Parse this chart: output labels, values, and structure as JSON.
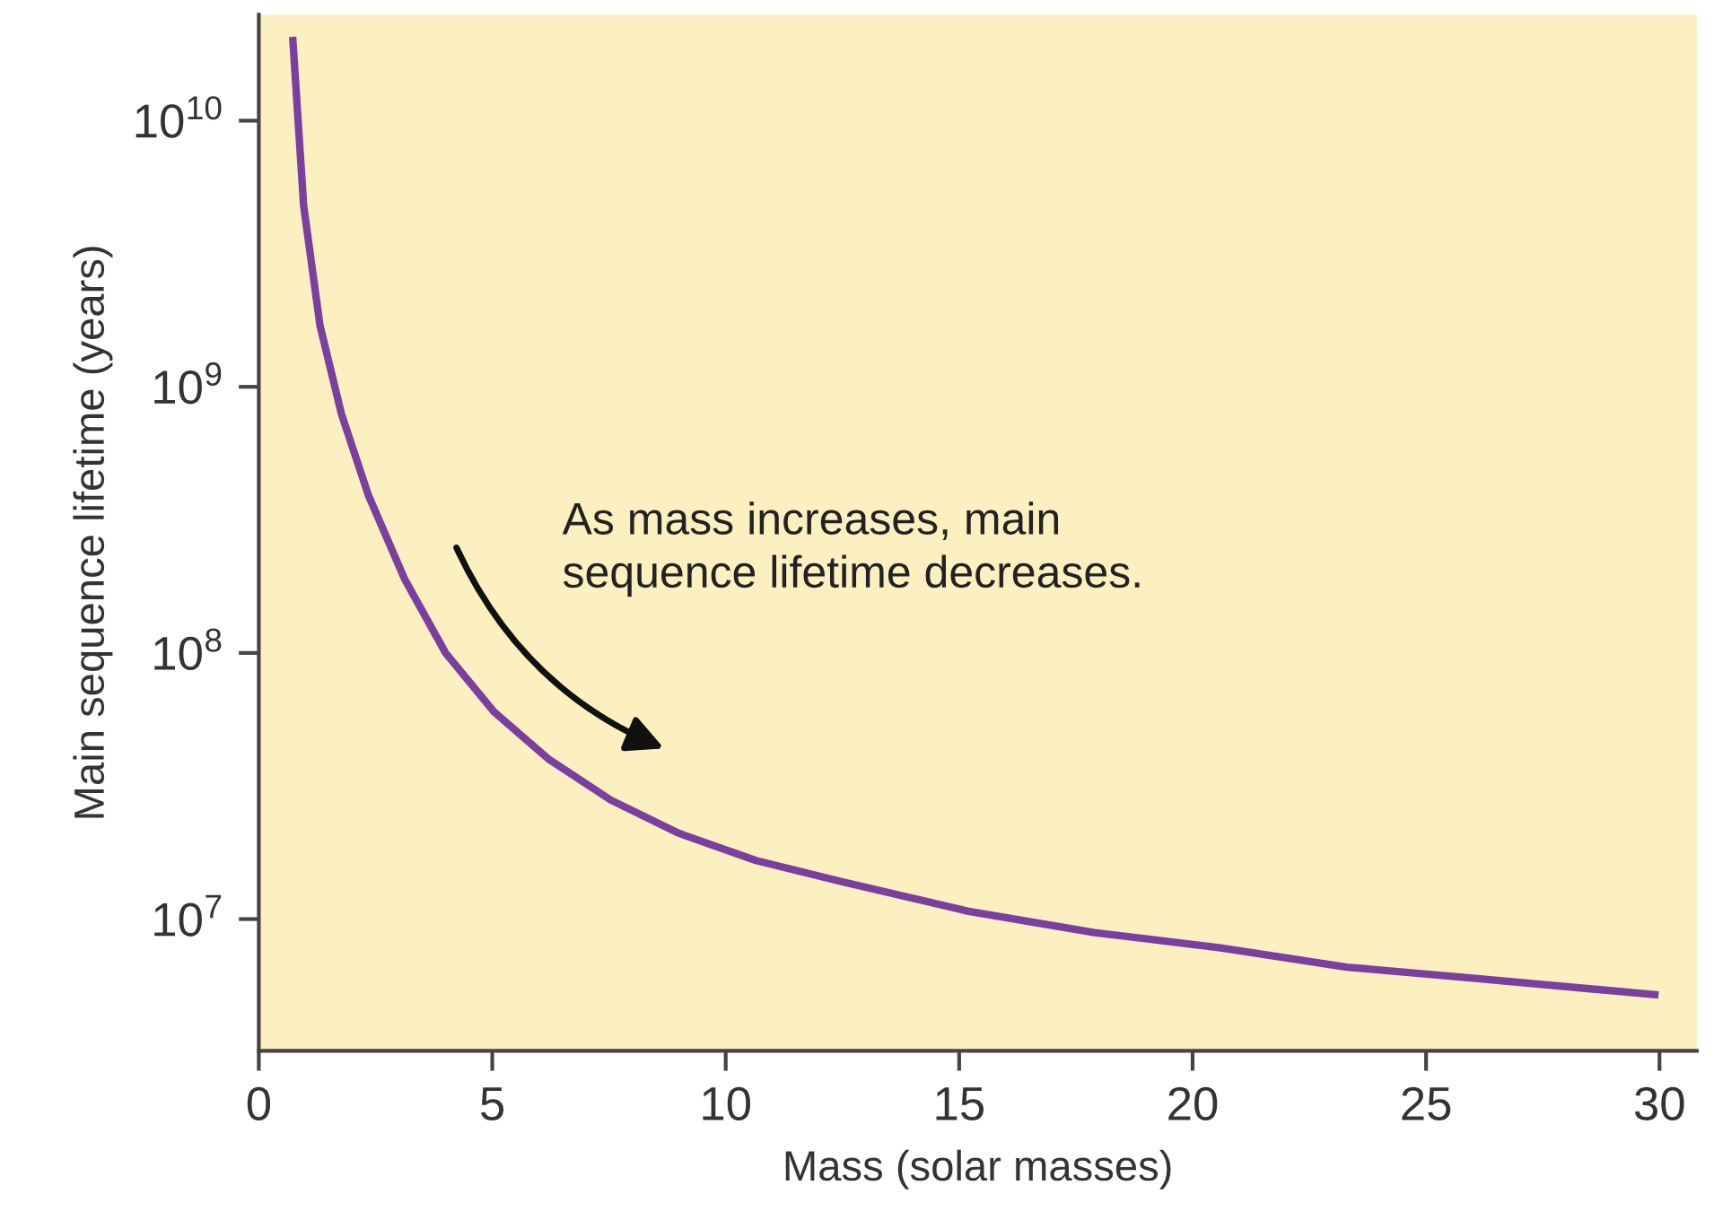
{
  "chart_data": {
    "type": "line",
    "xlabel": "Mass (solar masses)",
    "ylabel": "Main sequence lifetime (years)",
    "annotations": [
      "As mass increases, main\nsequence lifetime decreases."
    ],
    "x": [
      0.73,
      0.96,
      1.31,
      1.77,
      2.35,
      3.12,
      4.0,
      5.04,
      6.2,
      7.54,
      9.0,
      10.65,
      12.5,
      15.2,
      17.9,
      20.6,
      23.3,
      26.0,
      29.9
    ],
    "series": [
      {
        "color": "#7b3fa0",
        "values": [
          20000000000.0,
          4800000000.0,
          1700000000.0,
          790000000.0,
          390000000.0,
          190000000.0,
          100000000.0,
          60000000.0,
          40000000.0,
          28000000.0,
          21000000.0,
          16600000.0,
          13800000.0,
          10700000.0,
          8900000.0,
          7800000.0,
          6600000.0,
          6000000.0,
          5200000.0
        ]
      }
    ],
    "log": "y",
    "xlim": [
      0,
      30.8
    ],
    "ylim": [
      3200000.0,
      25000000000.0
    ],
    "xticks": [
      0,
      5,
      10,
      15,
      20,
      25,
      30
    ],
    "yticks": [
      {
        "value": 10000000.0,
        "label": "10$^{7}$"
      },
      {
        "value": 100000000.0,
        "label": "10$^{8}$"
      },
      {
        "value": 1000000000.0,
        "label": "10$^{9}$"
      },
      {
        "value": 10000000000.0,
        "label": "10$^{10}$"
      }
    ],
    "grid": false,
    "legend": false,
    "marker": "none",
    "line_style": "solid"
  }
}
